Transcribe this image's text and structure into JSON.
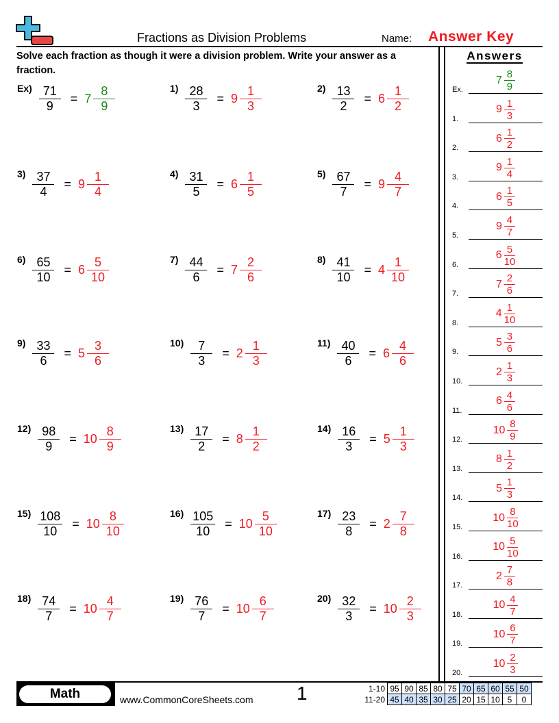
{
  "header": {
    "title": "Fractions as Division Problems",
    "name_label": "Name:",
    "answer_key": "Answer Key",
    "logo_icon": "plus-minus-logo-icon"
  },
  "instructions": "Solve each fraction as though it were a division problem. Write your answer as a fraction.",
  "answers_title": "Answers",
  "colors": {
    "answer_red": "#ee1c24",
    "example_green": "#1a8a1a",
    "score_highlight": "#cfe2fb"
  },
  "problems": [
    {
      "label": "Ex)",
      "num": "71",
      "den": "9",
      "whole": "7",
      "anum": "8",
      "aden": "9",
      "alabel": "Ex."
    },
    {
      "label": "1)",
      "num": "28",
      "den": "3",
      "whole": "9",
      "anum": "1",
      "aden": "3",
      "alabel": "1."
    },
    {
      "label": "2)",
      "num": "13",
      "den": "2",
      "whole": "6",
      "anum": "1",
      "aden": "2",
      "alabel": "2."
    },
    {
      "label": "3)",
      "num": "37",
      "den": "4",
      "whole": "9",
      "anum": "1",
      "aden": "4",
      "alabel": "3."
    },
    {
      "label": "4)",
      "num": "31",
      "den": "5",
      "whole": "6",
      "anum": "1",
      "aden": "5",
      "alabel": "4."
    },
    {
      "label": "5)",
      "num": "67",
      "den": "7",
      "whole": "9",
      "anum": "4",
      "aden": "7",
      "alabel": "5."
    },
    {
      "label": "6)",
      "num": "65",
      "den": "10",
      "whole": "6",
      "anum": "5",
      "aden": "10",
      "alabel": "6."
    },
    {
      "label": "7)",
      "num": "44",
      "den": "6",
      "whole": "7",
      "anum": "2",
      "aden": "6",
      "alabel": "7."
    },
    {
      "label": "8)",
      "num": "41",
      "den": "10",
      "whole": "4",
      "anum": "1",
      "aden": "10",
      "alabel": "8."
    },
    {
      "label": "9)",
      "num": "33",
      "den": "6",
      "whole": "5",
      "anum": "3",
      "aden": "6",
      "alabel": "9."
    },
    {
      "label": "10)",
      "num": "7",
      "den": "3",
      "whole": "2",
      "anum": "1",
      "aden": "3",
      "alabel": "10."
    },
    {
      "label": "11)",
      "num": "40",
      "den": "6",
      "whole": "6",
      "anum": "4",
      "aden": "6",
      "alabel": "11."
    },
    {
      "label": "12)",
      "num": "98",
      "den": "9",
      "whole": "10",
      "anum": "8",
      "aden": "9",
      "alabel": "12."
    },
    {
      "label": "13)",
      "num": "17",
      "den": "2",
      "whole": "8",
      "anum": "1",
      "aden": "2",
      "alabel": "13."
    },
    {
      "label": "14)",
      "num": "16",
      "den": "3",
      "whole": "5",
      "anum": "1",
      "aden": "3",
      "alabel": "14."
    },
    {
      "label": "15)",
      "num": "108",
      "den": "10",
      "whole": "10",
      "anum": "8",
      "aden": "10",
      "alabel": "15."
    },
    {
      "label": "16)",
      "num": "105",
      "den": "10",
      "whole": "10",
      "anum": "5",
      "aden": "10",
      "alabel": "16."
    },
    {
      "label": "17)",
      "num": "23",
      "den": "8",
      "whole": "2",
      "anum": "7",
      "aden": "8",
      "alabel": "17."
    },
    {
      "label": "18)",
      "num": "74",
      "den": "7",
      "whole": "10",
      "anum": "4",
      "aden": "7",
      "alabel": "18."
    },
    {
      "label": "19)",
      "num": "76",
      "den": "7",
      "whole": "10",
      "anum": "6",
      "aden": "7",
      "alabel": "19."
    },
    {
      "label": "20)",
      "num": "32",
      "den": "3",
      "whole": "10",
      "anum": "2",
      "aden": "3",
      "alabel": "20."
    }
  ],
  "equals": "=",
  "footer": {
    "subject": "Math",
    "website": "www.CommonCoreSheets.com",
    "page": "1"
  },
  "score": {
    "rows": [
      {
        "label": "1-10",
        "values": [
          "95",
          "90",
          "85",
          "80",
          "75",
          "70",
          "65",
          "60",
          "55",
          "50"
        ],
        "highlight": [
          false,
          false,
          false,
          false,
          false,
          true,
          true,
          true,
          true,
          true
        ]
      },
      {
        "label": "11-20",
        "values": [
          "45",
          "40",
          "35",
          "30",
          "25",
          "20",
          "15",
          "10",
          "5",
          "0"
        ],
        "highlight": [
          true,
          true,
          true,
          true,
          true,
          false,
          false,
          false,
          false,
          false
        ]
      }
    ]
  }
}
